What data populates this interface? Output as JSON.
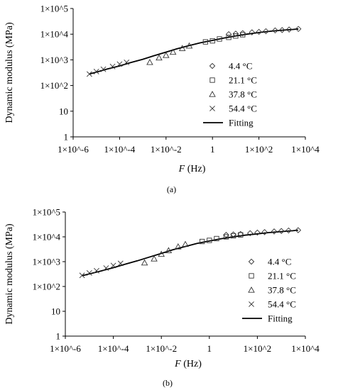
{
  "chart_data": [
    {
      "type": "scatter",
      "panel_label": "(a)",
      "xlabel_var": "F",
      "xlabel_unit": " (Hz)",
      "ylabel": "Dynamic modulus (MPa)",
      "x_scale": "log",
      "y_scale": "log",
      "xlim": [
        1e-06,
        10000
      ],
      "ylim": [
        1,
        100000
      ],
      "x_ticks": [
        {
          "value": 1e-06,
          "label": "1×10^-6"
        },
        {
          "value": 0.0001,
          "label": "1×10^-4"
        },
        {
          "value": 0.01,
          "label": "1×10^-2"
        },
        {
          "value": 1,
          "label": "1"
        },
        {
          "value": 100,
          "label": "1×10^2"
        },
        {
          "value": 10000,
          "label": "1×10^4"
        }
      ],
      "y_ticks": [
        {
          "value": 1,
          "label": "1"
        },
        {
          "value": 10,
          "label": "10"
        },
        {
          "value": 100,
          "label": "1×10^2"
        },
        {
          "value": 1000,
          "label": "1×10^3"
        },
        {
          "value": 10000,
          "label": "1×10^4"
        },
        {
          "value": 100000,
          "label": "1×10^5"
        }
      ],
      "legend_position": "right",
      "series": [
        {
          "name": "4.4 °C",
          "marker": "diamond",
          "x": [
            5,
            10,
            20,
            50,
            100,
            200,
            500,
            1000,
            2000,
            5000
          ],
          "y": [
            10000,
            10500,
            11000,
            11800,
            12300,
            13000,
            14000,
            14500,
            15200,
            16000
          ]
        },
        {
          "name": "21.1 °C",
          "marker": "square",
          "x": [
            0.5,
            1,
            2,
            5,
            10,
            20
          ],
          "y": [
            5000,
            5500,
            6500,
            7500,
            8500,
            9500
          ]
        },
        {
          "name": "37.8 °C",
          "marker": "triangle",
          "x": [
            0.002,
            0.005,
            0.01,
            0.02,
            0.05,
            0.1
          ],
          "y": [
            800,
            1200,
            1500,
            2000,
            2800,
            3500
          ]
        },
        {
          "name": "54.4 °C",
          "marker": "cross",
          "x": [
            5e-06,
            1e-05,
            2e-05,
            5e-05,
            0.0001,
            0.0002
          ],
          "y": [
            280,
            350,
            430,
            550,
            680,
            800
          ]
        },
        {
          "name": "Fitting",
          "marker": "line",
          "x": [
            5e-06,
            1e-05,
            3e-05,
            0.0001,
            0.0003,
            0.001,
            0.003,
            0.01,
            0.03,
            0.1,
            0.3,
            1,
            3,
            10,
            30,
            100,
            300,
            1000,
            3000,
            5000
          ],
          "y": [
            280,
            330,
            440,
            580,
            780,
            1050,
            1450,
            2000,
            2700,
            3600,
            4600,
            5700,
            7000,
            8500,
            10000,
            11600,
            13000,
            14300,
            15300,
            16000
          ]
        }
      ]
    },
    {
      "type": "scatter",
      "panel_label": "(b)",
      "xlabel_var": "F",
      "xlabel_unit": " (Hz)",
      "ylabel": "Dynamic modulus (MPa)",
      "x_scale": "log",
      "y_scale": "log",
      "xlim": [
        1e-06,
        10000
      ],
      "ylim": [
        1,
        100000
      ],
      "x_ticks": [
        {
          "value": 1e-06,
          "label": "1×10^-6"
        },
        {
          "value": 0.0001,
          "label": "1×10^-4"
        },
        {
          "value": 0.01,
          "label": "1×10^-2"
        },
        {
          "value": 1,
          "label": "1"
        },
        {
          "value": 100,
          "label": "1×10^2"
        },
        {
          "value": 10000,
          "label": "1×10^4"
        }
      ],
      "y_ticks": [
        {
          "value": 1,
          "label": "1"
        },
        {
          "value": 10,
          "label": "10"
        },
        {
          "value": 100,
          "label": "1×10^2"
        },
        {
          "value": 1000,
          "label": "1×10^3"
        },
        {
          "value": 10000,
          "label": "1×10^4"
        },
        {
          "value": 100000,
          "label": "1×10^5"
        }
      ],
      "legend_position": "right",
      "series": [
        {
          "name": "4.4 °C",
          "marker": "diamond",
          "x": [
            5,
            10,
            20,
            50,
            100,
            200,
            500,
            1000,
            2000,
            5000
          ],
          "y": [
            12000,
            12500,
            13000,
            14000,
            14800,
            15500,
            16500,
            17200,
            18000,
            18500
          ]
        },
        {
          "name": "21.1 °C",
          "marker": "square",
          "x": [
            0.5,
            1,
            2,
            5,
            10,
            20
          ],
          "y": [
            6500,
            7200,
            8500,
            10000,
            11000,
            12000
          ]
        },
        {
          "name": "37.8 °C",
          "marker": "triangle",
          "x": [
            0.002,
            0.005,
            0.01,
            0.02,
            0.05,
            0.1
          ],
          "y": [
            900,
            1300,
            2000,
            2800,
            4000,
            5000
          ]
        },
        {
          "name": "54.4 °C",
          "marker": "cross",
          "x": [
            5e-06,
            1e-05,
            2e-05,
            5e-05,
            0.0001,
            0.0002
          ],
          "y": [
            280,
            350,
            430,
            550,
            700,
            850
          ]
        },
        {
          "name": "Fitting",
          "marker": "line",
          "x": [
            5e-06,
            1e-05,
            3e-05,
            0.0001,
            0.0003,
            0.001,
            0.003,
            0.01,
            0.03,
            0.1,
            0.3,
            1,
            3,
            10,
            30,
            100,
            300,
            1000,
            3000,
            5000
          ],
          "y": [
            270,
            320,
            420,
            570,
            780,
            1080,
            1500,
            2150,
            3000,
            4100,
            5400,
            6800,
            8400,
            10000,
            11600,
            13200,
            14800,
            16300,
            17600,
            18500
          ]
        }
      ]
    }
  ]
}
